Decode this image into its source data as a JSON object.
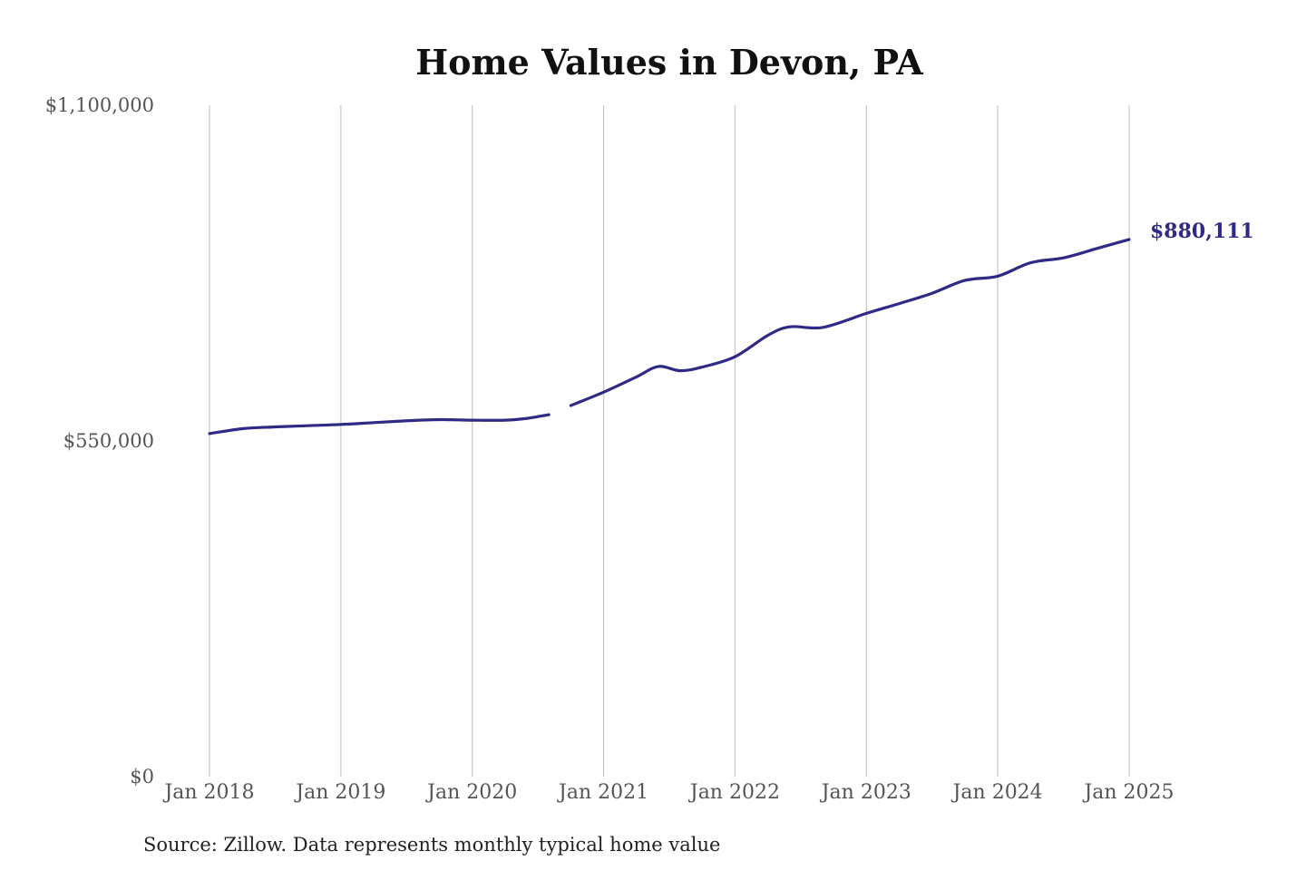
{
  "chart_data": {
    "type": "line",
    "title": "Home Values in Devon, PA",
    "source": "Source: Zillow. Data represents monthly typical home value",
    "ylim": [
      0,
      1100000
    ],
    "yticks": [
      0,
      550000,
      1100000
    ],
    "ytick_labels": [
      "$0",
      "$550,000",
      "$1,100,000"
    ],
    "xlim": [
      "2018-01",
      "2025-01"
    ],
    "xticks": [
      "2018-01",
      "2019-01",
      "2020-01",
      "2021-01",
      "2022-01",
      "2023-01",
      "2024-01",
      "2025-01"
    ],
    "xtick_labels": [
      "Jan 2018",
      "Jan 2019",
      "Jan 2020",
      "Jan 2021",
      "Jan 2022",
      "Jan 2023",
      "Jan 2024",
      "Jan 2025"
    ],
    "grid": "vertical",
    "legend": "none",
    "end_label": "$880,111",
    "colors": {
      "line": "#2e2a85",
      "grid": "#c8c8c8"
    },
    "series": [
      {
        "segments": [
          [
            [
              "2018-01",
              562000
            ],
            [
              "2018-04",
              570000
            ],
            [
              "2018-07",
              573000
            ],
            [
              "2018-10",
              575000
            ],
            [
              "2019-01",
              577000
            ],
            [
              "2019-04",
              580000
            ],
            [
              "2019-07",
              583000
            ],
            [
              "2019-10",
              585000
            ],
            [
              "2020-01",
              584000
            ],
            [
              "2020-04",
              584000
            ],
            [
              "2020-06",
              587000
            ],
            [
              "2020-08",
              593000
            ]
          ],
          [
            [
              "2020-10",
              608000
            ],
            [
              "2021-01",
              630000
            ],
            [
              "2021-04",
              655000
            ],
            [
              "2021-06",
              672000
            ],
            [
              "2021-08",
              665000
            ],
            [
              "2021-10",
              671000
            ],
            [
              "2022-01",
              688000
            ],
            [
              "2022-04",
              723000
            ],
            [
              "2022-06",
              737000
            ],
            [
              "2022-09",
              736000
            ],
            [
              "2023-01",
              759000
            ],
            [
              "2023-04",
              775000
            ],
            [
              "2023-07",
              792000
            ],
            [
              "2023-10",
              813000
            ],
            [
              "2024-01",
              820000
            ],
            [
              "2024-04",
              842000
            ],
            [
              "2024-07",
              850000
            ],
            [
              "2024-10",
              865000
            ],
            [
              "2025-01",
              880111
            ]
          ]
        ]
      }
    ]
  }
}
